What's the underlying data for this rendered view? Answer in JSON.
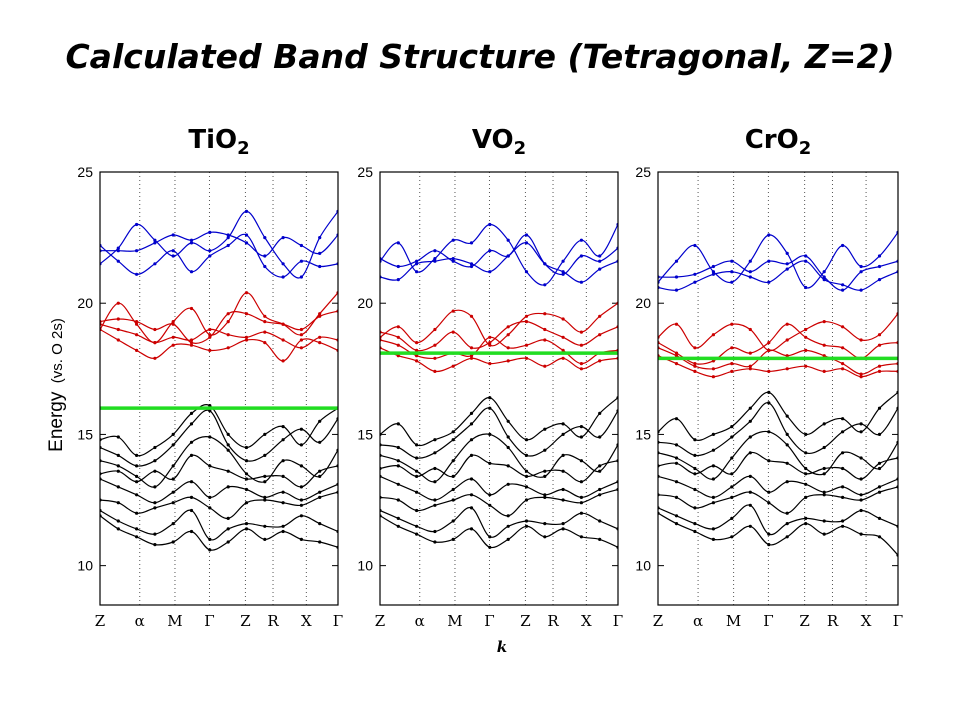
{
  "title": "Calculated Band Structure (Tetragonal, Z=2)",
  "ylabel_main": "Energy",
  "ylabel_unit": "(vs. O 2s)",
  "xlabel": "k",
  "colors": {
    "valence": "#000000",
    "conduction_lower": "#cc0000",
    "conduction_upper": "#0000cc",
    "fermi": "#22dd22",
    "grid": "#555555"
  },
  "chart_data": [
    {
      "type": "line",
      "panel_title": {
        "base": "TiO",
        "sub": "2"
      },
      "ylim": [
        8.5,
        25
      ],
      "yticks": [
        10,
        15,
        20,
        25
      ],
      "kpoints": [
        "Z",
        "α",
        "M",
        "Γ",
        "Z",
        "R",
        "X",
        "Γ"
      ],
      "fermi_level": 16.0,
      "bands": {
        "upper": [
          [
            21.5,
            22.1,
            23.0,
            22.4,
            21.8,
            22.3,
            22.0,
            22.5,
            23.5,
            22.5,
            21.5,
            21.0,
            22.5,
            23.5
          ],
          [
            22.0,
            22.0,
            22.0,
            22.3,
            22.6,
            22.4,
            22.7,
            22.6,
            22.3,
            21.8,
            22.5,
            22.2,
            21.9,
            22.6
          ],
          [
            22.2,
            21.6,
            21.1,
            21.5,
            22.0,
            21.2,
            21.8,
            22.2,
            22.6,
            21.4,
            21.0,
            21.6,
            21.4,
            21.5
          ]
        ],
        "lower": [
          [
            19.0,
            20.0,
            19.2,
            18.5,
            19.3,
            19.8,
            18.8,
            19.3,
            20.4,
            19.5,
            19.2,
            18.8,
            19.6,
            20.4
          ],
          [
            19.3,
            19.4,
            19.3,
            19.0,
            19.2,
            18.5,
            18.7,
            19.6,
            19.6,
            19.3,
            19.2,
            19.0,
            19.5,
            19.7
          ],
          [
            19.2,
            19.0,
            18.8,
            18.5,
            18.7,
            18.6,
            19.0,
            18.8,
            18.7,
            18.9,
            18.6,
            18.3,
            18.7,
            18.6
          ],
          [
            19.0,
            18.6,
            18.2,
            17.9,
            18.4,
            18.4,
            18.2,
            18.3,
            18.6,
            18.5,
            17.8,
            18.6,
            18.5,
            18.2
          ]
        ],
        "valence": [
          [
            14.8,
            14.9,
            14.2,
            14.5,
            15.0,
            15.8,
            16.1,
            15.0,
            14.5,
            15.0,
            15.3,
            14.6,
            15.5,
            16.0
          ],
          [
            14.5,
            14.2,
            13.8,
            14.0,
            14.6,
            15.4,
            15.9,
            14.6,
            14.0,
            14.2,
            14.8,
            15.2,
            14.7,
            15.6
          ],
          [
            14.0,
            13.8,
            13.4,
            13.0,
            13.8,
            14.7,
            14.9,
            14.4,
            13.5,
            13.2,
            14.0,
            13.8,
            13.4,
            14.4
          ],
          [
            13.5,
            13.6,
            13.2,
            13.6,
            13.3,
            14.2,
            13.8,
            13.6,
            13.3,
            13.4,
            13.4,
            13.0,
            13.6,
            13.8
          ],
          [
            13.3,
            13.0,
            12.7,
            12.4,
            12.8,
            13.2,
            12.6,
            13.0,
            12.9,
            12.6,
            12.8,
            12.5,
            12.8,
            13.1
          ],
          [
            12.5,
            12.4,
            12.0,
            12.2,
            12.4,
            12.6,
            12.2,
            11.8,
            12.4,
            12.5,
            12.4,
            12.3,
            12.6,
            12.8
          ],
          [
            12.1,
            11.7,
            11.4,
            11.2,
            11.6,
            12.1,
            11.0,
            11.4,
            11.6,
            11.5,
            11.5,
            11.9,
            11.6,
            11.3
          ],
          [
            11.9,
            11.4,
            11.1,
            10.8,
            10.9,
            11.3,
            10.6,
            10.9,
            11.4,
            11.0,
            11.3,
            11.0,
            10.9,
            10.7
          ]
        ]
      }
    },
    {
      "type": "line",
      "panel_title": {
        "base": "VO",
        "sub": "2"
      },
      "ylim": [
        8.5,
        25
      ],
      "yticks": [
        10,
        15,
        20,
        25
      ],
      "kpoints": [
        "Z",
        "α",
        "M",
        "Γ",
        "Z",
        "R",
        "X",
        "Γ"
      ],
      "fermi_level": 18.1,
      "bands": {
        "upper": [
          [
            21.6,
            22.3,
            21.2,
            21.7,
            22.4,
            22.3,
            23.0,
            22.4,
            21.2,
            20.7,
            21.6,
            22.4,
            21.8,
            23.0
          ],
          [
            21.7,
            21.4,
            21.6,
            22.0,
            21.6,
            21.4,
            22.0,
            21.8,
            22.6,
            21.5,
            21.1,
            21.8,
            21.6,
            22.1
          ],
          [
            21.0,
            20.9,
            21.5,
            21.6,
            21.7,
            21.5,
            21.2,
            21.8,
            22.3,
            21.5,
            21.2,
            20.8,
            21.3,
            21.6
          ]
        ],
        "lower": [
          [
            18.7,
            19.1,
            18.5,
            19.0,
            19.7,
            19.5,
            18.4,
            18.8,
            19.5,
            19.6,
            19.4,
            18.9,
            19.5,
            20.0
          ],
          [
            18.9,
            18.7,
            18.2,
            18.4,
            18.9,
            18.3,
            18.5,
            19.1,
            19.3,
            19.0,
            18.7,
            18.4,
            18.8,
            19.1
          ],
          [
            18.6,
            18.4,
            18.0,
            17.9,
            18.1,
            18.0,
            18.7,
            18.3,
            18.4,
            18.6,
            18.2,
            17.7,
            18.1,
            18.2
          ],
          [
            18.3,
            18.0,
            17.8,
            17.4,
            17.6,
            17.9,
            17.7,
            17.8,
            17.9,
            17.6,
            17.9,
            17.5,
            17.8,
            17.9
          ]
        ],
        "valence": [
          [
            15.0,
            15.4,
            14.6,
            14.8,
            15.1,
            15.8,
            16.4,
            15.5,
            14.8,
            15.2,
            15.4,
            14.9,
            15.8,
            16.4
          ],
          [
            14.6,
            14.5,
            14.1,
            14.3,
            14.8,
            15.4,
            16.0,
            14.9,
            14.2,
            14.4,
            15.0,
            15.3,
            14.9,
            15.9
          ],
          [
            14.2,
            14.0,
            13.6,
            13.2,
            14.0,
            14.8,
            15.0,
            14.5,
            13.6,
            13.4,
            14.2,
            14.0,
            13.6,
            14.6
          ],
          [
            13.7,
            13.8,
            13.4,
            13.7,
            13.4,
            14.2,
            13.9,
            13.8,
            13.4,
            13.6,
            13.6,
            13.2,
            13.8,
            14.0
          ],
          [
            13.4,
            13.1,
            12.8,
            12.5,
            12.9,
            13.3,
            12.7,
            13.1,
            13.0,
            12.7,
            12.9,
            12.6,
            12.9,
            13.2
          ],
          [
            12.6,
            12.5,
            12.1,
            12.3,
            12.5,
            12.7,
            12.3,
            11.9,
            12.5,
            12.6,
            12.5,
            12.4,
            12.7,
            12.9
          ],
          [
            12.1,
            11.8,
            11.5,
            11.3,
            11.7,
            12.2,
            11.1,
            11.5,
            11.7,
            11.6,
            11.6,
            12.0,
            11.7,
            11.4
          ],
          [
            11.9,
            11.5,
            11.2,
            10.9,
            11.0,
            11.4,
            10.7,
            11.0,
            11.5,
            11.1,
            11.4,
            11.1,
            11.0,
            10.7
          ]
        ]
      }
    },
    {
      "type": "line",
      "panel_title": {
        "base": "CrO",
        "sub": "2"
      },
      "ylim": [
        8.5,
        25
      ],
      "yticks": [
        10,
        15,
        20,
        25
      ],
      "kpoints": [
        "Z",
        "α",
        "M",
        "Γ",
        "Z",
        "R",
        "X",
        "Γ"
      ],
      "fermi_level": 17.9,
      "bands": {
        "upper": [
          [
            20.8,
            21.6,
            22.2,
            21.2,
            20.8,
            21.6,
            22.6,
            21.9,
            20.6,
            21.2,
            22.2,
            21.4,
            21.8,
            22.7
          ],
          [
            21.0,
            21.0,
            21.1,
            21.4,
            21.6,
            21.2,
            21.6,
            21.5,
            21.8,
            21.0,
            20.5,
            21.2,
            21.4,
            21.6
          ],
          [
            20.6,
            20.5,
            20.8,
            21.1,
            21.2,
            21.0,
            20.8,
            21.3,
            21.6,
            20.9,
            20.7,
            20.5,
            20.9,
            21.2
          ]
        ],
        "lower": [
          [
            18.7,
            19.2,
            18.3,
            18.8,
            19.2,
            19.0,
            18.2,
            18.6,
            19.0,
            19.3,
            19.1,
            18.6,
            18.8,
            19.6
          ],
          [
            18.5,
            18.1,
            17.7,
            17.8,
            18.3,
            18.1,
            18.5,
            19.2,
            18.7,
            18.4,
            18.3,
            17.9,
            18.4,
            18.5
          ],
          [
            18.3,
            18.0,
            17.6,
            17.5,
            17.7,
            17.6,
            18.2,
            18.0,
            18.2,
            18.0,
            17.7,
            17.3,
            17.6,
            17.7
          ],
          [
            18.0,
            17.7,
            17.4,
            17.2,
            17.4,
            17.5,
            17.4,
            17.5,
            17.6,
            17.4,
            17.5,
            17.2,
            17.4,
            17.4
          ]
        ],
        "valence": [
          [
            15.1,
            15.6,
            14.8,
            15.0,
            15.3,
            16.0,
            16.6,
            15.7,
            15.0,
            15.4,
            15.6,
            15.1,
            16.0,
            16.6
          ],
          [
            14.7,
            14.6,
            14.2,
            14.4,
            14.9,
            15.5,
            16.2,
            15.0,
            14.3,
            14.5,
            15.1,
            15.4,
            15.0,
            16.0
          ],
          [
            14.3,
            14.1,
            13.7,
            13.3,
            14.1,
            14.9,
            15.1,
            14.6,
            13.7,
            13.5,
            14.3,
            14.1,
            13.7,
            14.7
          ],
          [
            13.8,
            13.9,
            13.5,
            13.8,
            13.5,
            14.3,
            14.0,
            13.9,
            13.5,
            13.7,
            13.7,
            13.3,
            13.9,
            14.1
          ],
          [
            13.4,
            13.2,
            12.9,
            12.6,
            13.0,
            13.4,
            12.8,
            13.2,
            13.1,
            12.8,
            13.0,
            12.7,
            13.0,
            13.3
          ],
          [
            12.7,
            12.6,
            12.2,
            12.4,
            12.6,
            12.8,
            12.4,
            12.0,
            12.6,
            12.7,
            12.6,
            12.5,
            12.8,
            13.0
          ],
          [
            12.2,
            11.9,
            11.6,
            11.4,
            11.8,
            12.3,
            11.2,
            11.6,
            11.8,
            11.7,
            11.7,
            12.1,
            11.8,
            11.5
          ],
          [
            12.0,
            11.6,
            11.3,
            11.0,
            11.1,
            11.5,
            10.8,
            11.1,
            11.6,
            11.2,
            11.5,
            11.2,
            11.1,
            10.4
          ]
        ]
      }
    }
  ]
}
